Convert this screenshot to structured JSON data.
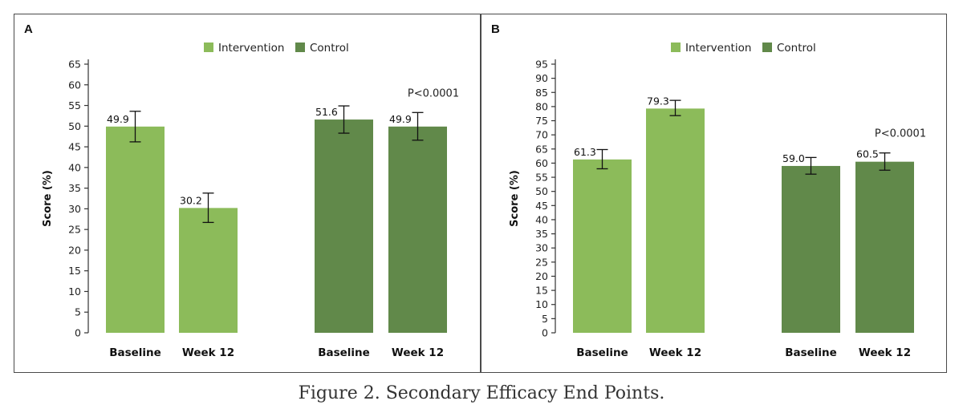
{
  "figure": {
    "caption": "Figure 2.  Secondary Efficacy End Points."
  },
  "colors": {
    "intervention": "#8cbb5a",
    "control": "#61894a"
  },
  "chart_data": [
    {
      "panel": "A",
      "type": "bar",
      "ylabel": "Score (%)",
      "ylim": [
        0,
        65
      ],
      "ytick_step": 5,
      "legend": [
        {
          "name": "Intervention",
          "color_key": "intervention"
        },
        {
          "name": "Control",
          "color_key": "control"
        }
      ],
      "legend_position": "top-center",
      "p_value": "P<0.0001",
      "groups": [
        {
          "series": "Intervention",
          "bars": [
            {
              "category": "Baseline",
              "value": 49.9,
              "label": "49.9",
              "err_low": 46.2,
              "err_high": 53.6
            },
            {
              "category": "Week 12",
              "value": 30.2,
              "label": "30.2",
              "err_low": 26.7,
              "err_high": 33.8
            }
          ]
        },
        {
          "series": "Control",
          "bars": [
            {
              "category": "Baseline",
              "value": 51.6,
              "label": "51.6",
              "err_low": 48.3,
              "err_high": 54.9
            },
            {
              "category": "Week 12",
              "value": 49.9,
              "label": "49.9",
              "err_low": 46.6,
              "err_high": 53.3
            }
          ]
        }
      ]
    },
    {
      "panel": "B",
      "type": "bar",
      "ylabel": "Score (%)",
      "ylim": [
        0,
        95
      ],
      "ytick_step": 5,
      "legend": [
        {
          "name": "Intervention",
          "color_key": "intervention"
        },
        {
          "name": "Control",
          "color_key": "control"
        }
      ],
      "legend_position": "top-center",
      "p_value": "P<0.0001",
      "groups": [
        {
          "series": "Intervention",
          "bars": [
            {
              "category": "Baseline",
              "value": 61.3,
              "label": "61.3",
              "err_low": 58.0,
              "err_high": 64.8
            },
            {
              "category": "Week 12",
              "value": 79.3,
              "label": "79.3",
              "err_low": 76.8,
              "err_high": 82.2
            }
          ]
        },
        {
          "series": "Control",
          "bars": [
            {
              "category": "Baseline",
              "value": 59.0,
              "label": "59.0",
              "err_low": 56.1,
              "err_high": 62.0
            },
            {
              "category": "Week 12",
              "value": 60.5,
              "label": "60.5",
              "err_low": 57.5,
              "err_high": 63.6
            }
          ]
        }
      ]
    }
  ]
}
